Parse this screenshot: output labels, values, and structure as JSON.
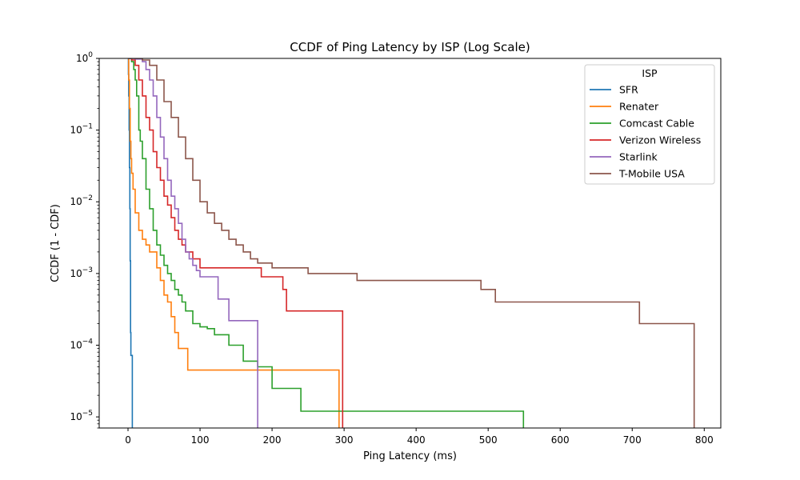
{
  "chart_data": {
    "type": "line",
    "title": "CCDF of Ping Latency by ISP (Log Scale)",
    "xlabel": "Ping Latency (ms)",
    "ylabel": "CCDF (1 - CDF)",
    "xlim": [
      -40,
      823
    ],
    "ylim": [
      7e-06,
      1
    ],
    "yscale": "log",
    "grid": false,
    "xticks": [
      0,
      100,
      200,
      300,
      400,
      500,
      600,
      700,
      800
    ],
    "yticks": [
      1e-05,
      0.0001,
      0.001,
      0.01,
      0.1,
      1
    ],
    "ytick_labels": {
      "base": "10",
      "exponents": [
        "−5",
        "−4",
        "−3",
        "−2",
        "−1",
        "0"
      ],
      "last": "10"
    },
    "legend": {
      "title": "ISP",
      "placement": "upper right"
    },
    "series": [
      {
        "name": "SFR",
        "color": "#1f77b4",
        "step": true,
        "x": [
          0,
          0.5,
          1,
          1.5,
          2,
          2.5,
          3,
          3.5,
          4,
          5,
          5.5,
          6,
          6.5
        ],
        "y": [
          1,
          0.6,
          0.3,
          0.1,
          0.03,
          0.008,
          0.0015,
          0.00015,
          7.2e-05,
          7.2e-05,
          7.2e-05,
          7e-06,
          7e-06
        ]
      },
      {
        "name": "Renater",
        "color": "#ff7f0e",
        "step": true,
        "x": [
          0,
          1,
          2,
          3,
          4,
          5,
          7,
          10,
          15,
          20,
          25,
          30,
          40,
          45,
          50,
          55,
          60,
          65,
          70,
          83,
          100,
          200,
          292,
          293
        ],
        "y": [
          1,
          0.5,
          0.2,
          0.07,
          0.04,
          0.025,
          0.015,
          0.007,
          0.004,
          0.003,
          0.0025,
          0.002,
          0.0012,
          0.0008,
          0.0005,
          0.0004,
          0.00025,
          0.00015,
          9e-05,
          4.5e-05,
          4.5e-05,
          4.5e-05,
          4.5e-05,
          7e-06
        ]
      },
      {
        "name": "Comcast Cable",
        "color": "#2ca02c",
        "step": true,
        "x": [
          0,
          5,
          8,
          10,
          12,
          15,
          17,
          20,
          25,
          30,
          35,
          40,
          45,
          50,
          55,
          60,
          65,
          70,
          75,
          80,
          90,
          100,
          110,
          120,
          140,
          160,
          180,
          200,
          240,
          400,
          548,
          549
        ],
        "y": [
          1,
          0.9,
          0.7,
          0.5,
          0.3,
          0.1,
          0.07,
          0.04,
          0.015,
          0.008,
          0.004,
          0.0025,
          0.0018,
          0.0013,
          0.001,
          0.0008,
          0.0006,
          0.0005,
          0.0004,
          0.0003,
          0.0002,
          0.00018,
          0.00017,
          0.00014,
          0.0001,
          6e-05,
          5e-05,
          2.5e-05,
          1.2e-05,
          1.2e-05,
          1.2e-05,
          7e-06
        ]
      },
      {
        "name": "Verizon Wireless",
        "color": "#d62728",
        "step": true,
        "x": [
          0,
          5,
          10,
          15,
          20,
          25,
          30,
          35,
          40,
          45,
          50,
          55,
          60,
          65,
          70,
          75,
          80,
          90,
          100,
          110,
          120,
          150,
          185,
          215,
          220,
          260,
          297,
          298
        ],
        "y": [
          1,
          0.95,
          0.8,
          0.5,
          0.3,
          0.15,
          0.1,
          0.05,
          0.03,
          0.02,
          0.012,
          0.009,
          0.006,
          0.004,
          0.003,
          0.0025,
          0.002,
          0.0016,
          0.0012,
          0.0012,
          0.0012,
          0.0012,
          0.0009,
          0.0006,
          0.0003,
          0.0003,
          0.0003,
          7e-06
        ]
      },
      {
        "name": "Starlink",
        "color": "#9467bd",
        "step": true,
        "x": [
          0,
          10,
          20,
          25,
          30,
          35,
          40,
          45,
          50,
          55,
          60,
          65,
          70,
          75,
          80,
          85,
          90,
          95,
          100,
          105,
          110,
          125,
          140,
          160,
          179,
          180
        ],
        "y": [
          1,
          0.98,
          0.9,
          0.7,
          0.5,
          0.3,
          0.15,
          0.08,
          0.04,
          0.02,
          0.012,
          0.008,
          0.005,
          0.003,
          0.002,
          0.0016,
          0.0013,
          0.0011,
          0.0009,
          0.0009,
          0.0009,
          0.00044,
          0.00022,
          0.00022,
          0.00022,
          7e-06
        ]
      },
      {
        "name": "T-Mobile USA",
        "color": "#8c564b",
        "step": true,
        "x": [
          0,
          20,
          30,
          40,
          50,
          60,
          70,
          80,
          90,
          100,
          110,
          120,
          130,
          140,
          150,
          160,
          170,
          180,
          200,
          250,
          318,
          350,
          450,
          490,
          510,
          600,
          710,
          780,
          785,
          786
        ],
        "y": [
          1,
          0.95,
          0.8,
          0.5,
          0.25,
          0.15,
          0.08,
          0.04,
          0.02,
          0.01,
          0.007,
          0.005,
          0.004,
          0.003,
          0.0025,
          0.002,
          0.0016,
          0.0014,
          0.0012,
          0.001,
          0.0008,
          0.0008,
          0.0008,
          0.0006,
          0.0004,
          0.0004,
          0.0002,
          0.0002,
          0.0002,
          7e-06
        ]
      }
    ]
  }
}
